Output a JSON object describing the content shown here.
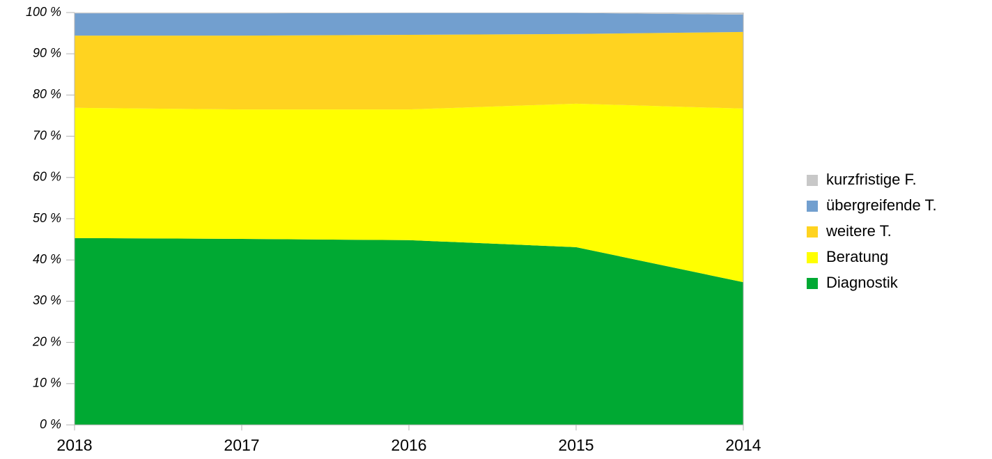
{
  "chart_data": {
    "type": "stacked_area",
    "categories": [
      "2018",
      "2017",
      "2016",
      "2015",
      "2014"
    ],
    "series": [
      {
        "name": "Diagnostik",
        "color": "#00a933",
        "values": [
          45.3,
          45.1,
          44.8,
          43.1,
          34.6
        ]
      },
      {
        "name": "Beratung",
        "color": "#ffff00",
        "values": [
          31.6,
          31.4,
          31.7,
          34.8,
          42.1
        ]
      },
      {
        "name": "weitere T.",
        "color": "#ffd320",
        "values": [
          17.5,
          17.9,
          18.1,
          16.9,
          18.6
        ]
      },
      {
        "name": "übergreifende T.",
        "color": "#729fcf",
        "values": [
          5.4,
          5.4,
          5.3,
          5.1,
          4.2
        ]
      },
      {
        "name": "kurzfristige F.",
        "color": "#c8c8c8",
        "values": [
          0.2,
          0.2,
          0.1,
          0.1,
          0.5
        ]
      }
    ],
    "ylim": [
      0,
      100
    ],
    "yticks": [
      {
        "value": 0,
        "label": "0 %"
      },
      {
        "value": 10,
        "label": "10 %"
      },
      {
        "value": 20,
        "label": "20 %"
      },
      {
        "value": 30,
        "label": "30 %"
      },
      {
        "value": 40,
        "label": "40 %"
      },
      {
        "value": 50,
        "label": "50 %"
      },
      {
        "value": 60,
        "label": "60 %"
      },
      {
        "value": 70,
        "label": "70 %"
      },
      {
        "value": 80,
        "label": "80 %"
      },
      {
        "value": 90,
        "label": "90 %"
      },
      {
        "value": 100,
        "label": "100 %"
      }
    ],
    "legend": "right",
    "grid": false
  }
}
